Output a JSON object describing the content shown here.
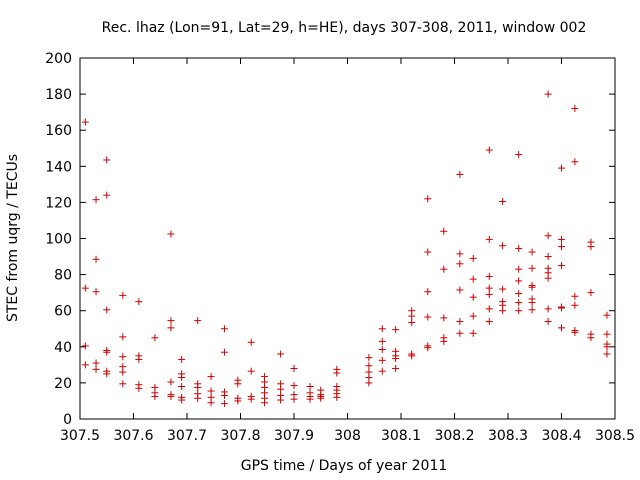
{
  "chart_data": {
    "type": "scatter",
    "title": "Rec. lhaz (Lon=91, Lat=29, h=HE), days 307-308, 2011, window 002",
    "xlabel": "GPS time / Days of year 2011",
    "ylabel": "STEC from uqrg / TECUs",
    "xlim": [
      307.5,
      308.5
    ],
    "ylim": [
      0,
      200
    ],
    "xticks": [
      307.5,
      307.6,
      307.7,
      307.8,
      307.9,
      308.0,
      308.1,
      308.2,
      308.3,
      308.4,
      308.5
    ],
    "xtick_labels": [
      "307.5",
      "307.6",
      "307.7",
      "307.8",
      "307.9",
      "308",
      "308.1",
      "308.2",
      "308.3",
      "308.4",
      "308.5"
    ],
    "yticks": [
      0,
      20,
      40,
      60,
      80,
      100,
      120,
      140,
      160,
      180,
      200
    ],
    "ytick_labels": [
      "0",
      "20",
      "40",
      "60",
      "80",
      "100",
      "120",
      "140",
      "160",
      "180",
      "200"
    ],
    "marker": "+",
    "color": "#cc0000",
    "series": [
      {
        "name": "STEC",
        "points": [
          [
            307.51,
            164.5
          ],
          [
            307.51,
            72.5
          ],
          [
            307.51,
            40.5
          ],
          [
            307.51,
            30
          ],
          [
            307.53,
            121.5
          ],
          [
            307.53,
            88.5
          ],
          [
            307.53,
            70.5
          ],
          [
            307.53,
            31
          ],
          [
            307.53,
            27.5
          ],
          [
            307.55,
            143.5
          ],
          [
            307.55,
            124
          ],
          [
            307.55,
            60.5
          ],
          [
            307.55,
            38
          ],
          [
            307.55,
            37
          ],
          [
            307.55,
            26.5
          ],
          [
            307.55,
            25
          ],
          [
            307.58,
            68.5
          ],
          [
            307.58,
            45.5
          ],
          [
            307.58,
            34.5
          ],
          [
            307.58,
            29
          ],
          [
            307.58,
            26
          ],
          [
            307.58,
            19.5
          ],
          [
            307.61,
            65
          ],
          [
            307.61,
            35
          ],
          [
            307.61,
            33
          ],
          [
            307.61,
            19
          ],
          [
            307.61,
            17
          ],
          [
            307.64,
            45
          ],
          [
            307.64,
            17.5
          ],
          [
            307.64,
            14.5
          ],
          [
            307.64,
            12.5
          ],
          [
            307.67,
            102.5
          ],
          [
            307.67,
            54.5
          ],
          [
            307.67,
            50.5
          ],
          [
            307.67,
            20.5
          ],
          [
            307.67,
            13.5
          ],
          [
            307.67,
            12.5
          ],
          [
            307.69,
            33
          ],
          [
            307.69,
            25
          ],
          [
            307.69,
            23
          ],
          [
            307.69,
            18
          ],
          [
            307.69,
            12
          ],
          [
            307.69,
            10.5
          ],
          [
            307.72,
            54.5
          ],
          [
            307.72,
            19.5
          ],
          [
            307.72,
            17.5
          ],
          [
            307.72,
            14
          ],
          [
            307.72,
            11.5
          ],
          [
            307.745,
            23.5
          ],
          [
            307.745,
            15.5
          ],
          [
            307.745,
            12
          ],
          [
            307.745,
            9
          ],
          [
            307.77,
            50
          ],
          [
            307.77,
            37
          ],
          [
            307.77,
            15
          ],
          [
            307.77,
            13
          ],
          [
            307.77,
            8.5
          ],
          [
            307.795,
            21.5
          ],
          [
            307.795,
            19.5
          ],
          [
            307.795,
            11.5
          ],
          [
            307.795,
            10
          ],
          [
            307.82,
            42.5
          ],
          [
            307.82,
            26.5
          ],
          [
            307.82,
            12.5
          ],
          [
            307.82,
            11
          ],
          [
            307.845,
            23.5
          ],
          [
            307.845,
            20.5
          ],
          [
            307.845,
            17.5
          ],
          [
            307.845,
            14.5
          ],
          [
            307.845,
            11.5
          ],
          [
            307.845,
            9
          ],
          [
            307.875,
            36
          ],
          [
            307.875,
            19.5
          ],
          [
            307.875,
            16.5
          ],
          [
            307.875,
            13
          ],
          [
            307.875,
            10.5
          ],
          [
            307.9,
            28
          ],
          [
            307.9,
            18.5
          ],
          [
            307.9,
            13.5
          ],
          [
            307.9,
            11
          ],
          [
            307.93,
            18
          ],
          [
            307.93,
            14.5
          ],
          [
            307.93,
            12.5
          ],
          [
            307.93,
            11
          ],
          [
            307.95,
            16
          ],
          [
            307.95,
            13.5
          ],
          [
            307.95,
            12.5
          ],
          [
            307.95,
            11.5
          ],
          [
            307.98,
            27.5
          ],
          [
            307.98,
            25.5
          ],
          [
            307.98,
            18
          ],
          [
            307.98,
            16
          ],
          [
            307.98,
            14
          ],
          [
            307.98,
            12
          ],
          [
            308.04,
            34
          ],
          [
            308.04,
            29.5
          ],
          [
            308.04,
            26
          ],
          [
            308.04,
            23
          ],
          [
            308.04,
            20
          ],
          [
            308.065,
            50
          ],
          [
            308.065,
            43
          ],
          [
            308.065,
            38.5
          ],
          [
            308.065,
            32.5
          ],
          [
            308.065,
            26.5
          ],
          [
            308.09,
            49.5
          ],
          [
            308.09,
            37.5
          ],
          [
            308.09,
            35
          ],
          [
            308.09,
            33.5
          ],
          [
            308.09,
            28
          ],
          [
            308.12,
            60
          ],
          [
            308.12,
            57
          ],
          [
            308.12,
            53.5
          ],
          [
            308.12,
            36
          ],
          [
            308.12,
            35
          ],
          [
            308.15,
            122
          ],
          [
            308.15,
            92.5
          ],
          [
            308.15,
            70.5
          ],
          [
            308.15,
            56.5
          ],
          [
            308.15,
            40.5
          ],
          [
            308.15,
            39.5
          ],
          [
            308.18,
            104
          ],
          [
            308.18,
            83
          ],
          [
            308.18,
            56
          ],
          [
            308.18,
            45
          ],
          [
            308.18,
            43
          ],
          [
            308.21,
            135.5
          ],
          [
            308.21,
            91.5
          ],
          [
            308.21,
            86
          ],
          [
            308.21,
            71.5
          ],
          [
            308.21,
            54
          ],
          [
            308.21,
            47.5
          ],
          [
            308.235,
            89
          ],
          [
            308.235,
            77.5
          ],
          [
            308.235,
            67.5
          ],
          [
            308.235,
            57
          ],
          [
            308.235,
            47.5
          ],
          [
            308.265,
            149
          ],
          [
            308.265,
            99.5
          ],
          [
            308.265,
            79
          ],
          [
            308.265,
            72.5
          ],
          [
            308.265,
            69
          ],
          [
            308.265,
            61
          ],
          [
            308.265,
            54
          ],
          [
            308.29,
            120.5
          ],
          [
            308.29,
            96
          ],
          [
            308.29,
            72
          ],
          [
            308.29,
            65
          ],
          [
            308.29,
            63
          ],
          [
            308.29,
            60
          ],
          [
            308.32,
            146.5
          ],
          [
            308.32,
            94.5
          ],
          [
            308.32,
            83
          ],
          [
            308.32,
            76.5
          ],
          [
            308.32,
            69.5
          ],
          [
            308.32,
            64.5
          ],
          [
            308.32,
            60
          ],
          [
            308.345,
            92.5
          ],
          [
            308.345,
            83.5
          ],
          [
            308.345,
            74
          ],
          [
            308.345,
            73
          ],
          [
            308.345,
            66.5
          ],
          [
            308.345,
            64.5
          ],
          [
            308.345,
            60.5
          ],
          [
            308.375,
            180
          ],
          [
            308.375,
            101.5
          ],
          [
            308.375,
            90
          ],
          [
            308.375,
            83.5
          ],
          [
            308.375,
            81
          ],
          [
            308.375,
            78
          ],
          [
            308.375,
            61
          ],
          [
            308.375,
            54
          ],
          [
            308.4,
            139
          ],
          [
            308.4,
            99.5
          ],
          [
            308.4,
            95.5
          ],
          [
            308.4,
            85
          ],
          [
            308.4,
            62
          ],
          [
            308.4,
            61.5
          ],
          [
            308.4,
            50.5
          ],
          [
            308.425,
            172
          ],
          [
            308.425,
            142.5
          ],
          [
            308.425,
            68
          ],
          [
            308.425,
            63
          ],
          [
            308.425,
            49
          ],
          [
            308.425,
            48
          ],
          [
            308.455,
            98
          ],
          [
            308.455,
            95.5
          ],
          [
            308.455,
            70
          ],
          [
            308.455,
            47
          ],
          [
            308.455,
            45
          ],
          [
            308.485,
            57.5
          ],
          [
            308.485,
            47
          ],
          [
            308.485,
            41.5
          ],
          [
            308.485,
            40
          ],
          [
            308.485,
            36
          ]
        ]
      }
    ]
  }
}
